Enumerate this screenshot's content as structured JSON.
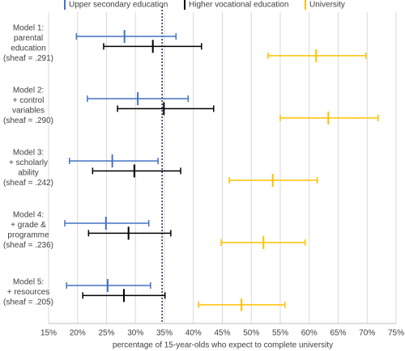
{
  "chart_data": {
    "type": "errorbar",
    "x_label": "percentage of 15-year-olds who expect to complete university",
    "categories": [
      [
        "Model 1:",
        "parental",
        "education",
        "(sheaf = .291)"
      ],
      [
        "Model 2:",
        "+ control",
        "variables",
        "(sheaf = .290)"
      ],
      [
        "Model 3:",
        "+ scholarly",
        "ability",
        "(sheaf = .242)"
      ],
      [
        "Model 4:",
        "+ grade &",
        "programme",
        "(sheaf = .236)"
      ],
      [
        "Model 5:",
        "+ resources",
        "(sheaf = .205)"
      ]
    ],
    "series": [
      {
        "name": "Upper secondary education",
        "color": "#4472c4",
        "values": [
          28.1,
          30.4,
          26.0,
          24.9,
          25.2
        ],
        "lower": [
          19.8,
          21.7,
          18.6,
          17.8,
          18.1
        ],
        "upper": [
          37.0,
          39.1,
          33.9,
          32.3,
          32.6
        ]
      },
      {
        "name": "Higher vocational education",
        "color": "#000000",
        "values": [
          33.0,
          34.9,
          29.8,
          28.8,
          28.0
        ],
        "lower": [
          24.5,
          26.9,
          22.6,
          21.9,
          20.9
        ],
        "upper": [
          41.4,
          43.5,
          37.8,
          36.1,
          35.1
        ]
      },
      {
        "name": "University",
        "color": "#ffc000",
        "values": [
          61.2,
          63.3,
          53.7,
          52.1,
          48.3
        ],
        "lower": [
          52.9,
          55.0,
          46.2,
          44.8,
          40.9
        ],
        "upper": [
          69.8,
          71.9,
          61.4,
          59.3,
          55.8
        ]
      }
    ],
    "reference_line": 34.6,
    "xlim": [
      15,
      75
    ],
    "xticks": [
      {
        "value": 15,
        "label": "15%"
      },
      {
        "value": 20,
        "label": "20%"
      },
      {
        "value": 25,
        "label": "25%"
      },
      {
        "value": 30,
        "label": "30%"
      },
      {
        "value": 35,
        "label": "35%"
      },
      {
        "value": 40,
        "label": "40%"
      },
      {
        "value": 45,
        "label": "45%"
      },
      {
        "value": 50,
        "label": "50%"
      },
      {
        "value": 55,
        "label": "55%"
      },
      {
        "value": 60,
        "label": "60%"
      },
      {
        "value": 65,
        "label": "65%"
      },
      {
        "value": 70,
        "label": "70%"
      },
      {
        "value": 75,
        "label": "75%"
      }
    ],
    "grid": true,
    "legend": "top"
  }
}
